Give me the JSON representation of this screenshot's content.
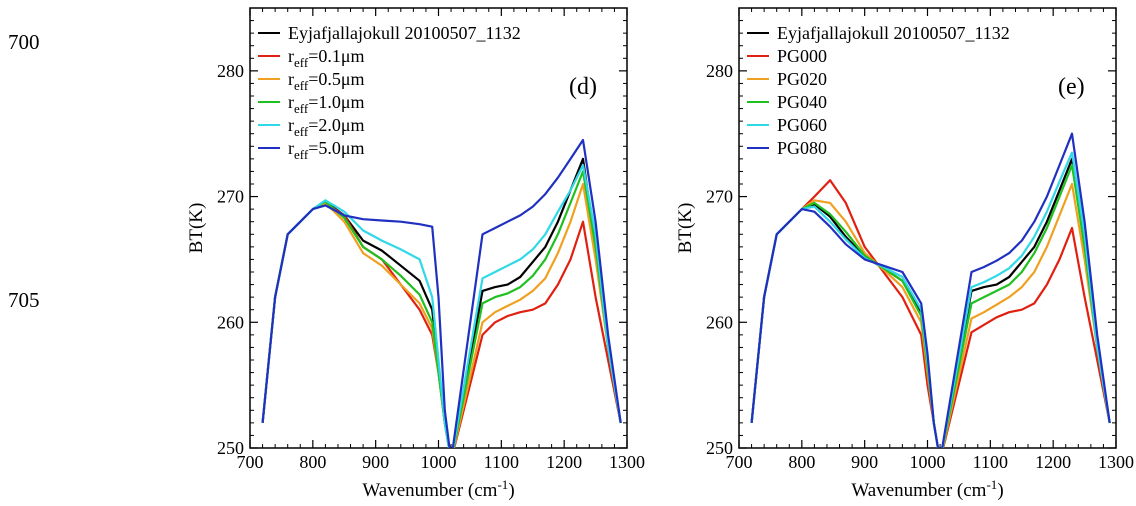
{
  "page": {
    "line_numbers": [
      "700",
      "705"
    ]
  },
  "chart_data": [
    {
      "type": "line",
      "panel_label": "(d)",
      "xlabel": "Wavenumber (cm",
      "xlabel_exp": "-1",
      "xlabel_suffix": ")",
      "ylabel": "BT(K)",
      "xlim": [
        700,
        1300
      ],
      "ylim": [
        250,
        285
      ],
      "xticks": [
        700,
        800,
        900,
        1000,
        1100,
        1200,
        1300
      ],
      "yticks": [
        250,
        260,
        270,
        280
      ],
      "legend_position": "top-left",
      "legend": [
        {
          "base": "Eyjafjallajokull 20100507_1132",
          "sub": "",
          "rest": "",
          "color": "#000000"
        },
        {
          "base": "r",
          "sub": "eff",
          "rest": "=0.1μm",
          "color": "#e02010"
        },
        {
          "base": "r",
          "sub": "eff",
          "rest": "=0.5μm",
          "color": "#f0a020"
        },
        {
          "base": "r",
          "sub": "eff",
          "rest": "=1.0μm",
          "color": "#20c020"
        },
        {
          "base": "r",
          "sub": "eff",
          "rest": "=2.0μm",
          "color": "#30d8e8"
        },
        {
          "base": "r",
          "sub": "eff",
          "rest": "=5.0μm",
          "color": "#2030c0"
        }
      ],
      "series": [
        {
          "name": "r_eff=0.1μm",
          "color": "#e02010",
          "x": [
            720,
            740,
            760,
            780,
            800,
            820,
            850,
            880,
            910,
            940,
            970,
            990,
            1000,
            1010,
            1020,
            1070,
            1090,
            1110,
            1130,
            1150,
            1170,
            1190,
            1210,
            1230,
            1250,
            1270,
            1290
          ],
          "y": [
            252,
            262,
            267,
            268,
            269,
            269.5,
            268.5,
            266,
            265,
            263,
            261,
            259,
            256,
            252,
            249,
            259,
            260,
            260.5,
            260.8,
            261,
            261.5,
            263,
            265,
            268,
            262,
            257,
            252
          ]
        },
        {
          "name": "r_eff=0.5μm",
          "color": "#f0a020",
          "x": [
            720,
            740,
            760,
            780,
            800,
            820,
            850,
            880,
            910,
            940,
            970,
            990,
            1000,
            1010,
            1020,
            1070,
            1090,
            1110,
            1130,
            1150,
            1170,
            1190,
            1210,
            1230,
            1250,
            1270,
            1290
          ],
          "y": [
            252,
            262,
            267,
            268,
            269,
            269.5,
            268,
            265.5,
            264.5,
            263,
            261.5,
            259.5,
            256,
            252,
            249,
            260,
            260.8,
            261.3,
            261.8,
            262.5,
            263.5,
            265.5,
            268,
            271,
            265,
            258,
            252
          ]
        },
        {
          "name": "r_eff=1.0μm",
          "color": "#20c020",
          "x": [
            720,
            740,
            760,
            780,
            800,
            820,
            850,
            880,
            910,
            940,
            970,
            990,
            1000,
            1010,
            1020,
            1070,
            1090,
            1110,
            1130,
            1150,
            1170,
            1190,
            1210,
            1230,
            1250,
            1270,
            1290
          ],
          "y": [
            252,
            262,
            267,
            268,
            269,
            269.6,
            268.3,
            266,
            265,
            263.7,
            262.2,
            260,
            256,
            252,
            249,
            261.5,
            262,
            262.3,
            262.8,
            263.7,
            265,
            267,
            269.5,
            272,
            266,
            258,
            252
          ]
        },
        {
          "name": "r_eff=2.0μm",
          "color": "#30d8e8",
          "x": [
            720,
            740,
            760,
            780,
            800,
            820,
            850,
            880,
            910,
            940,
            970,
            990,
            1000,
            1010,
            1020,
            1070,
            1090,
            1110,
            1130,
            1150,
            1170,
            1190,
            1210,
            1230,
            1250,
            1270,
            1290
          ],
          "y": [
            252,
            262,
            267,
            268,
            269,
            269.7,
            268.8,
            267.3,
            266.5,
            265.8,
            265,
            262,
            257,
            252,
            249,
            263.5,
            264,
            264.5,
            265,
            265.8,
            267,
            268.8,
            270.5,
            272.5,
            267,
            258,
            252
          ]
        },
        {
          "name": "r_eff=5.0μm",
          "color": "#2030c0",
          "x": [
            720,
            740,
            760,
            780,
            800,
            820,
            850,
            880,
            910,
            940,
            970,
            990,
            1000,
            1010,
            1020,
            1070,
            1090,
            1110,
            1130,
            1150,
            1170,
            1190,
            1210,
            1230,
            1250,
            1270,
            1290
          ],
          "y": [
            252,
            262,
            267,
            268,
            269,
            269.3,
            268.5,
            268.2,
            268.1,
            268,
            267.8,
            267.6,
            262,
            253,
            249,
            267,
            267.5,
            268,
            268.5,
            269.2,
            270.2,
            271.5,
            273,
            274.5,
            268,
            259,
            252
          ]
        },
        {
          "name": "Eyjafjallajokull 20100507_1132",
          "color": "#000000",
          "x": [
            720,
            740,
            760,
            780,
            800,
            820,
            850,
            880,
            910,
            940,
            970,
            990,
            1000,
            1010,
            1020,
            1070,
            1090,
            1110,
            1130,
            1150,
            1170,
            1190,
            1210,
            1230,
            1250,
            1270,
            1290
          ],
          "y": [
            252,
            262,
            267,
            268,
            269,
            269.6,
            268.5,
            266.5,
            265.7,
            264.5,
            263.3,
            261,
            256.5,
            252,
            249,
            262.5,
            262.8,
            263,
            263.6,
            264.8,
            266,
            268,
            270.5,
            273,
            266,
            258,
            252
          ]
        }
      ]
    },
    {
      "type": "line",
      "panel_label": "(e)",
      "xlabel": "Wavenumber (cm",
      "xlabel_exp": "-1",
      "xlabel_suffix": ")",
      "ylabel": "BT(K)",
      "xlim": [
        700,
        1300
      ],
      "ylim": [
        250,
        285
      ],
      "xticks": [
        700,
        800,
        900,
        1000,
        1100,
        1200,
        1300
      ],
      "yticks": [
        250,
        260,
        270,
        280
      ],
      "legend_position": "top-left",
      "legend": [
        {
          "base": "Eyjafjallajokull 20100507_1132",
          "sub": "",
          "rest": "",
          "color": "#000000"
        },
        {
          "base": "PG000",
          "sub": "",
          "rest": "",
          "color": "#e02010"
        },
        {
          "base": "PG020",
          "sub": "",
          "rest": "",
          "color": "#f0a020"
        },
        {
          "base": "PG040",
          "sub": "",
          "rest": "",
          "color": "#20c020"
        },
        {
          "base": "PG060",
          "sub": "",
          "rest": "",
          "color": "#30d8e8"
        },
        {
          "base": "PG080",
          "sub": "",
          "rest": "",
          "color": "#2030c0"
        }
      ],
      "series": [
        {
          "name": "PG000",
          "color": "#e02010",
          "x": [
            720,
            740,
            760,
            780,
            800,
            820,
            845,
            870,
            900,
            930,
            960,
            990,
            1000,
            1010,
            1020,
            1070,
            1090,
            1110,
            1130,
            1150,
            1170,
            1190,
            1210,
            1230,
            1250,
            1270,
            1290
          ],
          "y": [
            252,
            262,
            267,
            268,
            269,
            270,
            271.3,
            269.5,
            266,
            264,
            262,
            259,
            255,
            252,
            249,
            259.2,
            259.8,
            260.4,
            260.8,
            261,
            261.5,
            263,
            265,
            267.5,
            262,
            257,
            252
          ]
        },
        {
          "name": "PG020",
          "color": "#f0a020",
          "x": [
            720,
            740,
            760,
            780,
            800,
            820,
            845,
            870,
            900,
            930,
            960,
            990,
            1000,
            1010,
            1020,
            1070,
            1090,
            1110,
            1130,
            1150,
            1170,
            1190,
            1210,
            1230,
            1250,
            1270,
            1290
          ],
          "y": [
            252,
            262,
            267,
            268,
            269,
            269.7,
            269.5,
            268,
            265.5,
            264.2,
            262.8,
            260,
            256,
            252,
            249,
            260.3,
            260.8,
            261.4,
            262,
            262.8,
            264,
            266,
            268.5,
            271,
            265,
            258,
            252
          ]
        },
        {
          "name": "PG040",
          "color": "#20c020",
          "x": [
            720,
            740,
            760,
            780,
            800,
            820,
            845,
            870,
            900,
            930,
            960,
            990,
            1000,
            1010,
            1020,
            1070,
            1090,
            1110,
            1130,
            1150,
            1170,
            1190,
            1210,
            1230,
            1250,
            1270,
            1290
          ],
          "y": [
            252,
            262,
            267,
            268,
            269,
            269.5,
            268.6,
            267.2,
            265.3,
            264.3,
            263.3,
            260.5,
            256.5,
            252,
            249,
            261.5,
            262,
            262.5,
            263,
            264,
            265.5,
            267.5,
            270,
            272.5,
            266,
            258,
            252
          ]
        },
        {
          "name": "PG060",
          "color": "#30d8e8",
          "x": [
            720,
            740,
            760,
            780,
            800,
            820,
            845,
            870,
            900,
            930,
            960,
            990,
            1000,
            1010,
            1020,
            1070,
            1090,
            1110,
            1130,
            1150,
            1170,
            1190,
            1210,
            1230,
            1250,
            1270,
            1290
          ],
          "y": [
            252,
            262,
            267,
            268,
            269,
            269.2,
            268,
            266.6,
            265.1,
            264.4,
            263.6,
            261,
            257,
            252,
            249,
            262.8,
            263.2,
            263.7,
            264.3,
            265.3,
            266.8,
            268.8,
            271.2,
            273.5,
            267,
            258,
            252
          ]
        },
        {
          "name": "PG080",
          "color": "#2030c0",
          "x": [
            720,
            740,
            760,
            780,
            800,
            820,
            845,
            870,
            900,
            930,
            960,
            990,
            1000,
            1010,
            1020,
            1070,
            1090,
            1110,
            1130,
            1150,
            1170,
            1190,
            1210,
            1230,
            1250,
            1270,
            1290
          ],
          "y": [
            252,
            262,
            267,
            268,
            269,
            268.8,
            267.6,
            266.2,
            265,
            264.5,
            264,
            261.5,
            257.5,
            252,
            249,
            264,
            264.4,
            264.9,
            265.5,
            266.5,
            268,
            270,
            272.5,
            275,
            268,
            259,
            252
          ]
        },
        {
          "name": "Eyjafjallajokull 20100507_1132",
          "color": "#000000",
          "x": [
            720,
            740,
            760,
            780,
            800,
            820,
            845,
            870,
            900,
            930,
            960,
            990,
            1000,
            1010,
            1020,
            1070,
            1090,
            1110,
            1130,
            1150,
            1170,
            1190,
            1210,
            1230,
            1250,
            1270,
            1290
          ],
          "y": [
            252,
            262,
            267,
            268,
            269,
            269.4,
            268.4,
            266.8,
            265.2,
            264.3,
            263.3,
            260.8,
            256.8,
            252,
            249,
            262.5,
            262.8,
            263,
            263.6,
            264.8,
            266,
            268,
            270.5,
            273,
            266,
            258,
            252
          ]
        }
      ]
    }
  ]
}
